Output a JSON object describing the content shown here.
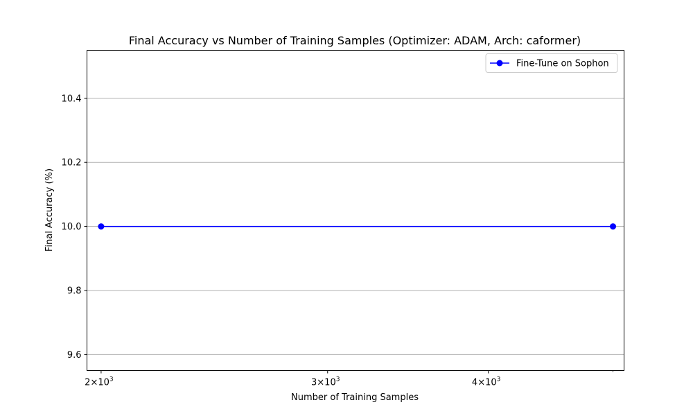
{
  "chart_data": {
    "type": "line",
    "title": "Final Accuracy vs Number of Training Samples (Optimizer: ADAM, Arch: caformer)",
    "xlabel": "Number of Training Samples",
    "ylabel": "Final Accuracy (%)",
    "x_scale": "log",
    "xlim": [
      1950,
      5100
    ],
    "ylim": [
      9.55,
      10.55
    ],
    "x_ticks": [
      {
        "value": 2000,
        "base": "2×10",
        "exp": "3"
      },
      {
        "value": 3000,
        "base": "3×10",
        "exp": "3"
      },
      {
        "value": 4000,
        "base": "4×10",
        "exp": "3"
      }
    ],
    "y_ticks": [
      {
        "value": 9.6,
        "label": "9.6"
      },
      {
        "value": 9.8,
        "label": "9.8"
      },
      {
        "value": 10.0,
        "label": "10.0"
      },
      {
        "value": 10.2,
        "label": "10.2"
      },
      {
        "value": 10.4,
        "label": "10.4"
      }
    ],
    "grid": {
      "y": true,
      "x": false
    },
    "legend_position": "top-right",
    "series": [
      {
        "name": "Fine-Tune on Sophon",
        "color": "#0000ff",
        "marker": "circle",
        "points": [
          {
            "x": 2000,
            "y": 10.0
          },
          {
            "x": 5000,
            "y": 10.0
          }
        ]
      }
    ]
  }
}
